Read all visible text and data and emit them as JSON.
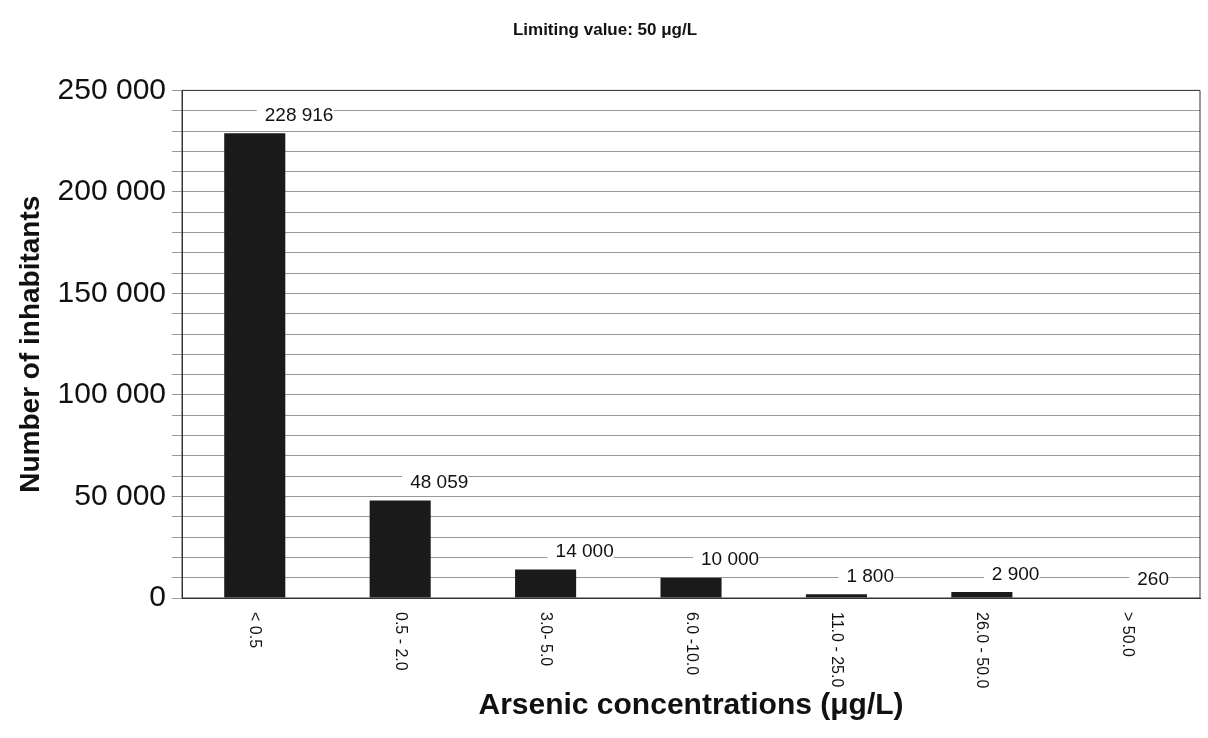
{
  "chart_data": {
    "type": "bar",
    "title": "Limiting value: 50 μg/L",
    "xlabel": "Arsenic concentrations (μg/L)",
    "ylabel": "Number of inhabitants",
    "categories": [
      "< 0.5",
      "0.5 - 2.0",
      "3.0- 5.0",
      "6.0 -10.0",
      "11.0 - 25.0",
      "26.0 - 50.0",
      "> 50.0"
    ],
    "values": [
      228916,
      48059,
      14000,
      10000,
      1800,
      2900,
      260
    ],
    "value_labels": [
      "228 916",
      "48 059",
      "14 000",
      "10 000",
      "1 800",
      "2 900",
      "260"
    ],
    "color": "#1a1a1a",
    "ylim": [
      0,
      250000
    ],
    "yticks": [
      {
        "value": 0,
        "label": "0"
      },
      {
        "value": 10000,
        "label": null
      },
      {
        "value": 20000,
        "label": null
      },
      {
        "value": 30000,
        "label": null
      },
      {
        "value": 40000,
        "label": null
      },
      {
        "value": 50000,
        "label": "50 000"
      },
      {
        "value": 60000,
        "label": null
      },
      {
        "value": 70000,
        "label": null
      },
      {
        "value": 80000,
        "label": null
      },
      {
        "value": 90000,
        "label": null
      },
      {
        "value": 100000,
        "label": "100 000"
      },
      {
        "value": 110000,
        "label": null
      },
      {
        "value": 120000,
        "label": null
      },
      {
        "value": 130000,
        "label": null
      },
      {
        "value": 140000,
        "label": null
      },
      {
        "value": 150000,
        "label": "150 000"
      },
      {
        "value": 160000,
        "label": null
      },
      {
        "value": 170000,
        "label": null
      },
      {
        "value": 180000,
        "label": null
      },
      {
        "value": 190000,
        "label": null
      },
      {
        "value": 200000,
        "label": "200 000"
      },
      {
        "value": 210000,
        "label": null
      },
      {
        "value": 220000,
        "label": null
      },
      {
        "value": 230000,
        "label": null
      },
      {
        "value": 240000,
        "label": null
      },
      {
        "value": 250000,
        "label": "250 000"
      }
    ],
    "grid": "y",
    "legend": false
  }
}
